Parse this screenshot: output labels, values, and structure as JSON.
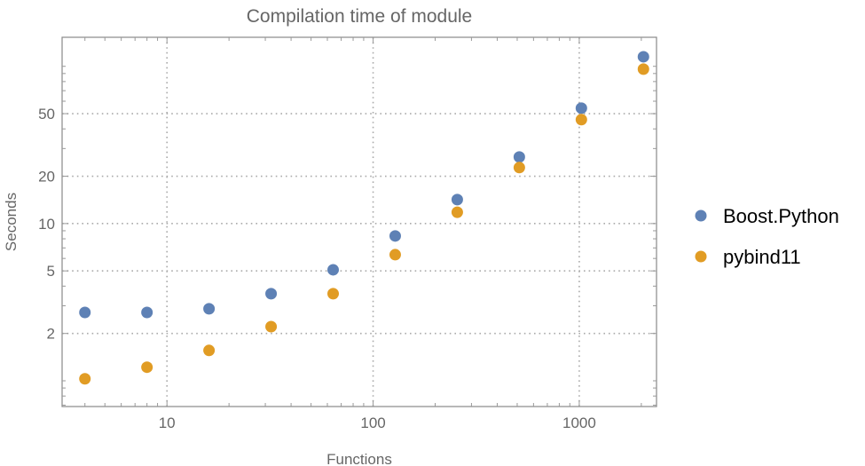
{
  "chart_data": {
    "type": "scatter",
    "title": "Compilation time of module",
    "xlabel": "Functions",
    "ylabel": "Seconds",
    "xscale": "log",
    "yscale": "log",
    "xlim": [
      3.1,
      2370
    ],
    "ylim": [
      0.686,
      153
    ],
    "xticks": [
      10,
      100,
      1000
    ],
    "xtick_labels": [
      "10",
      "100",
      "1000"
    ],
    "yticks": [
      2,
      5,
      10,
      20,
      50
    ],
    "ytick_labels": [
      "2",
      "5",
      "10",
      "20",
      "50"
    ],
    "grid": true,
    "legend_position": "right",
    "x": [
      4,
      8,
      16,
      32,
      64,
      128,
      256,
      512,
      1024,
      2048
    ],
    "series": [
      {
        "name": "Boost.Python",
        "color": "#5E81B5",
        "values": [
          2.72,
          2.72,
          2.87,
          3.58,
          5.08,
          8.34,
          14.2,
          26.5,
          54.2,
          115
        ]
      },
      {
        "name": "pybind11",
        "color": "#E19C24",
        "values": [
          1.03,
          1.22,
          1.56,
          2.21,
          3.58,
          6.34,
          11.8,
          22.7,
          45.8,
          96
        ]
      }
    ]
  }
}
